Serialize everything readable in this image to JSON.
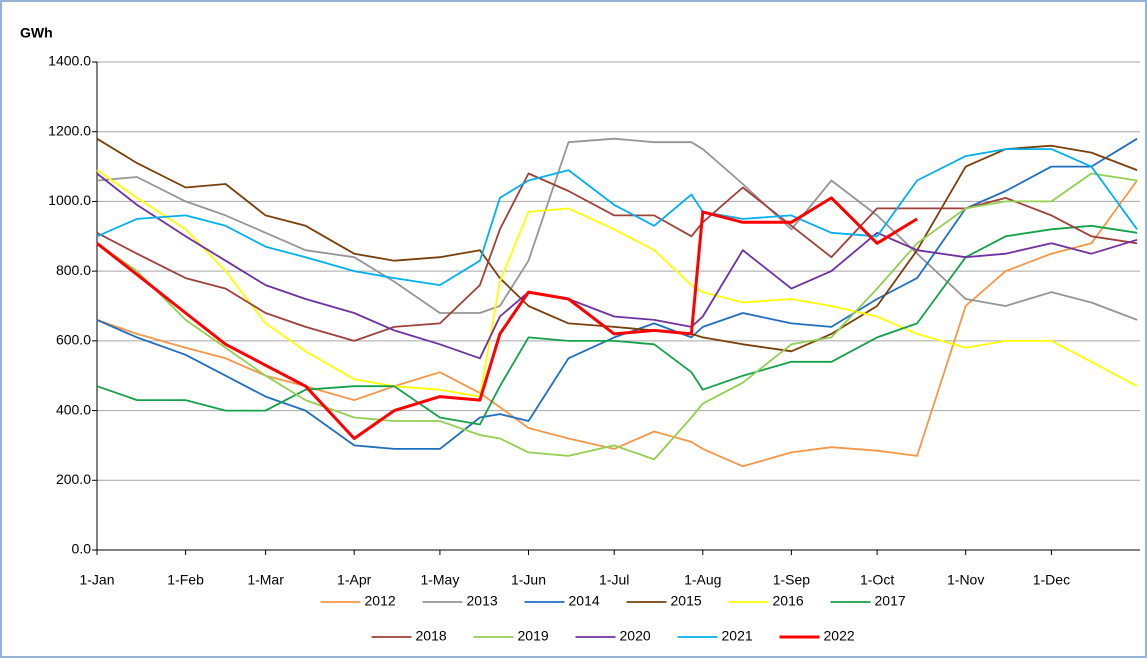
{
  "chart_data": {
    "type": "line",
    "y_label": "GWh",
    "x": [
      "1-Jan",
      "15-Jan",
      "1-Feb",
      "15-Feb",
      "1-Mar",
      "15-Mar",
      "1-Apr",
      "15-Apr",
      "1-May",
      "15-May",
      "22-May",
      "1-Jun",
      "15-Jun",
      "1-Jul",
      "15-Jul",
      "28-Jul",
      "1-Aug",
      "15-Aug",
      "1-Sep",
      "15-Sep",
      "1-Oct",
      "15-Oct",
      "1-Nov",
      "15-Nov",
      "1-Dec",
      "15-Dec",
      "31-Dec"
    ],
    "xticks": [
      "1-Jan",
      "1-Feb",
      "1-Mar",
      "1-Apr",
      "1-May",
      "1-Jun",
      "1-Jul",
      "1-Aug",
      "1-Sep",
      "1-Oct",
      "1-Nov",
      "1-Dec"
    ],
    "ylim": [
      0,
      1400
    ],
    "yticks": [
      {
        "value": 0,
        "label": "0.0"
      },
      {
        "value": 200,
        "label": "200.0"
      },
      {
        "value": 400,
        "label": "400.0"
      },
      {
        "value": 600,
        "label": "600.0"
      },
      {
        "value": 800,
        "label": "800.0"
      },
      {
        "value": 1000,
        "label": "1000.0"
      },
      {
        "value": 1200,
        "label": "1200.0"
      },
      {
        "value": 1400,
        "label": "1400.0"
      }
    ],
    "grid": true,
    "legend": "bottom",
    "series": [
      {
        "name": "2012",
        "color": "#f79646",
        "values": [
          660,
          620,
          580,
          550,
          500,
          470,
          430,
          470,
          510,
          450,
          410,
          350,
          320,
          290,
          340,
          310,
          290,
          240,
          280,
          295,
          285,
          270,
          700,
          800,
          850,
          880,
          1060
        ]
      },
      {
        "name": "2013",
        "color": "#969696",
        "values": [
          1060,
          1070,
          1000,
          960,
          910,
          860,
          840,
          770,
          680,
          680,
          700,
          830,
          1170,
          1180,
          1170,
          1170,
          1150,
          1050,
          920,
          1060,
          960,
          850,
          720,
          700,
          740,
          710,
          660
        ]
      },
      {
        "name": "2014",
        "color": "#1f6fc0",
        "values": [
          660,
          610,
          560,
          500,
          440,
          400,
          300,
          290,
          290,
          380,
          390,
          370,
          550,
          610,
          650,
          610,
          640,
          680,
          650,
          640,
          720,
          780,
          980,
          1030,
          1100,
          1100,
          1180
        ]
      },
      {
        "name": "2015",
        "color": "#7b3f0a",
        "values": [
          1180,
          1110,
          1040,
          1050,
          960,
          930,
          850,
          830,
          840,
          860,
          780,
          700,
          650,
          640,
          630,
          620,
          610,
          590,
          570,
          620,
          700,
          860,
          1100,
          1150,
          1160,
          1140,
          1090
        ]
      },
      {
        "name": "2016",
        "color": "#ffff00",
        "values": [
          1090,
          1010,
          920,
          800,
          650,
          570,
          490,
          470,
          460,
          440,
          770,
          970,
          980,
          920,
          860,
          760,
          740,
          710,
          720,
          700,
          670,
          620,
          580,
          600,
          600,
          540,
          470
        ]
      },
      {
        "name": "2017",
        "color": "#12a34a",
        "values": [
          470,
          430,
          430,
          400,
          400,
          460,
          470,
          470,
          380,
          360,
          470,
          610,
          600,
          600,
          590,
          510,
          460,
          500,
          540,
          540,
          610,
          650,
          840,
          900,
          920,
          930,
          910
        ]
      },
      {
        "name": "2018",
        "color": "#a0403a",
        "values": [
          910,
          850,
          780,
          750,
          680,
          640,
          600,
          640,
          650,
          760,
          920,
          1080,
          1030,
          960,
          960,
          900,
          940,
          1040,
          930,
          840,
          980,
          980,
          980,
          1010,
          960,
          900,
          880
        ]
      },
      {
        "name": "2019",
        "color": "#92d050",
        "values": [
          880,
          800,
          660,
          580,
          500,
          430,
          380,
          370,
          370,
          330,
          320,
          280,
          270,
          300,
          260,
          380,
          420,
          480,
          590,
          610,
          750,
          880,
          980,
          1000,
          1000,
          1080,
          1060
        ]
      },
      {
        "name": "2020",
        "color": "#7030a0",
        "values": [
          1080,
          990,
          900,
          830,
          760,
          720,
          680,
          630,
          590,
          550,
          670,
          740,
          720,
          670,
          660,
          640,
          670,
          860,
          750,
          800,
          910,
          860,
          840,
          850,
          880,
          850,
          890
        ]
      },
      {
        "name": "2021",
        "color": "#00b0f0",
        "values": [
          900,
          950,
          960,
          930,
          870,
          840,
          800,
          780,
          760,
          830,
          1010,
          1060,
          1090,
          990,
          930,
          1020,
          970,
          950,
          960,
          910,
          900,
          1060,
          1130,
          1150,
          1150,
          1100,
          920
        ]
      },
      {
        "name": "2022",
        "color": "#ff0000",
        "width": 3,
        "values": [
          880,
          790,
          680,
          590,
          530,
          470,
          320,
          400,
          440,
          430,
          620,
          740,
          720,
          620,
          630,
          620,
          970,
          940,
          940,
          1010,
          880,
          950,
          null,
          null,
          null,
          null,
          null
        ]
      }
    ]
  }
}
